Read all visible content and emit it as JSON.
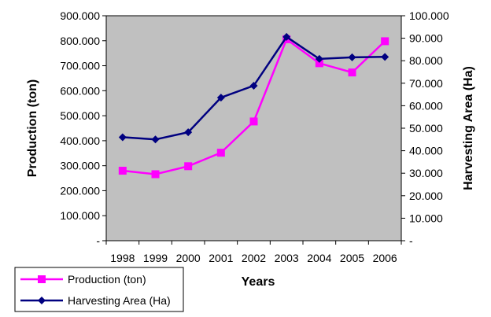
{
  "chart_data": {
    "type": "line",
    "categories": [
      "1998",
      "1999",
      "2000",
      "2001",
      "2002",
      "2003",
      "2004",
      "2005",
      "2006"
    ],
    "series": [
      {
        "name": "Production (ton)",
        "axis": "left",
        "color": "#FF00FF",
        "marker": "square",
        "values": [
          280000,
          266000,
          298000,
          352000,
          477000,
          806000,
          710000,
          673000,
          798000
        ]
      },
      {
        "name": "Harvesting Area (Ha)",
        "axis": "right",
        "color": "#000080",
        "marker": "diamond",
        "values": [
          46000,
          45000,
          48200,
          63600,
          68900,
          90600,
          80800,
          81500,
          81700
        ]
      }
    ],
    "xlabel": "Years",
    "ylabel_left": "Production (ton)",
    "ylabel_right": "Harvesting  Area (Ha)",
    "ylim_left": [
      0,
      900000
    ],
    "ylim_right": [
      0,
      100000
    ],
    "yticks_left": [
      "-",
      "100.000",
      "200.000",
      "300.000",
      "400.000",
      "500.000",
      "600.000",
      "700.000",
      "800.000",
      "900.000"
    ],
    "yticks_right": [
      "-",
      "10.000",
      "20.000",
      "30.000",
      "40.000",
      "50.000",
      "60.000",
      "70.000",
      "80.000",
      "90.000",
      "100.000"
    ],
    "plot_background": "#C0C0C0",
    "grid": false,
    "legend_position": "bottom-left"
  }
}
